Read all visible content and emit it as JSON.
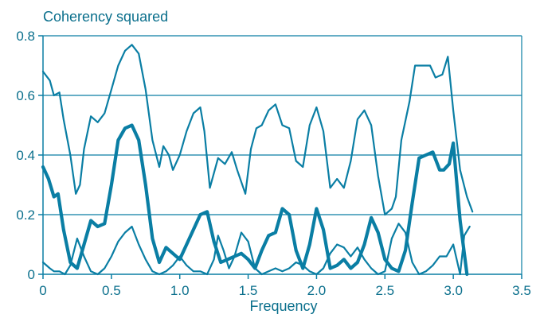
{
  "chart_data": {
    "type": "line",
    "title": "",
    "ylabel": "Coherency squared",
    "xlabel": "Frequency",
    "xlim": [
      0,
      3.5
    ],
    "ylim": [
      0,
      0.8
    ],
    "x_ticks": [
      "0",
      "0.5",
      "1.0",
      "1.5",
      "2.0",
      "2.5",
      "3.0",
      "3.5"
    ],
    "x_tick_values": [
      0,
      0.5,
      1.0,
      1.5,
      2.0,
      2.5,
      3.0,
      3.5
    ],
    "y_ticks": [
      "0",
      "0.2",
      "0.4",
      "0.6",
      "0.8"
    ],
    "y_tick_values": [
      0,
      0.2,
      0.4,
      0.6,
      0.8
    ],
    "grid": "horizontal",
    "legend": "none",
    "colors": {
      "line": "#0a7ea4",
      "grid": "#0a7ea4",
      "text": "#0a6f8c",
      "background": "#ffffff"
    },
    "series": [
      {
        "style": "upper-thin",
        "x": [
          0,
          0.05,
          0.08,
          0.12,
          0.15,
          0.2,
          0.24,
          0.27,
          0.3,
          0.35,
          0.4,
          0.45,
          0.5,
          0.55,
          0.6,
          0.65,
          0.7,
          0.75,
          0.8,
          0.85,
          0.88,
          0.92,
          0.95,
          1.0,
          1.05,
          1.1,
          1.15,
          1.18,
          1.22,
          1.28,
          1.33,
          1.38,
          1.42,
          1.48,
          1.52,
          1.56,
          1.6,
          1.65,
          1.7,
          1.75,
          1.8,
          1.85,
          1.9,
          1.95,
          2.0,
          2.05,
          2.1,
          2.15,
          2.2,
          2.25,
          2.3,
          2.35,
          2.4,
          2.45,
          2.5,
          2.55,
          2.58,
          2.62,
          2.68,
          2.72,
          2.77,
          2.83,
          2.87,
          2.92,
          2.96,
          3.0,
          3.05,
          3.1,
          3.14
        ],
        "y": [
          0.68,
          0.65,
          0.6,
          0.61,
          0.52,
          0.4,
          0.27,
          0.3,
          0.42,
          0.53,
          0.51,
          0.54,
          0.62,
          0.7,
          0.75,
          0.77,
          0.74,
          0.62,
          0.45,
          0.36,
          0.43,
          0.4,
          0.35,
          0.4,
          0.48,
          0.54,
          0.56,
          0.48,
          0.29,
          0.39,
          0.37,
          0.41,
          0.35,
          0.27,
          0.42,
          0.49,
          0.5,
          0.55,
          0.57,
          0.5,
          0.49,
          0.38,
          0.36,
          0.5,
          0.56,
          0.48,
          0.29,
          0.32,
          0.29,
          0.38,
          0.52,
          0.55,
          0.5,
          0.33,
          0.2,
          0.22,
          0.26,
          0.45,
          0.58,
          0.7,
          0.7,
          0.7,
          0.66,
          0.67,
          0.73,
          0.55,
          0.35,
          0.26,
          0.21
        ]
      },
      {
        "style": "middle-thick",
        "x": [
          0,
          0.04,
          0.08,
          0.11,
          0.15,
          0.2,
          0.25,
          0.3,
          0.35,
          0.4,
          0.45,
          0.5,
          0.55,
          0.6,
          0.65,
          0.7,
          0.75,
          0.8,
          0.85,
          0.9,
          0.95,
          1.0,
          1.05,
          1.1,
          1.15,
          1.2,
          1.25,
          1.3,
          1.35,
          1.4,
          1.45,
          1.5,
          1.55,
          1.6,
          1.65,
          1.7,
          1.75,
          1.8,
          1.85,
          1.9,
          1.95,
          2.0,
          2.05,
          2.1,
          2.15,
          2.2,
          2.25,
          2.3,
          2.35,
          2.4,
          2.45,
          2.5,
          2.55,
          2.6,
          2.65,
          2.7,
          2.75,
          2.8,
          2.85,
          2.9,
          2.93,
          2.97,
          3.0,
          3.05,
          3.1
        ],
        "y": [
          0.36,
          0.32,
          0.26,
          0.27,
          0.15,
          0.04,
          0.02,
          0.1,
          0.18,
          0.16,
          0.17,
          0.3,
          0.45,
          0.49,
          0.5,
          0.45,
          0.3,
          0.12,
          0.04,
          0.09,
          0.07,
          0.05,
          0.1,
          0.15,
          0.2,
          0.21,
          0.11,
          0.04,
          0.05,
          0.06,
          0.07,
          0.05,
          0.02,
          0.08,
          0.13,
          0.14,
          0.22,
          0.2,
          0.08,
          0.02,
          0.1,
          0.22,
          0.15,
          0.02,
          0.03,
          0.05,
          0.02,
          0.04,
          0.1,
          0.19,
          0.14,
          0.05,
          0.02,
          0.01,
          0.08,
          0.24,
          0.39,
          0.4,
          0.41,
          0.35,
          0.35,
          0.37,
          0.44,
          0.18,
          0.0
        ]
      },
      {
        "style": "lower-thin",
        "x": [
          0,
          0.05,
          0.08,
          0.12,
          0.16,
          0.2,
          0.25,
          0.3,
          0.35,
          0.4,
          0.45,
          0.5,
          0.55,
          0.6,
          0.65,
          0.7,
          0.75,
          0.8,
          0.85,
          0.9,
          0.95,
          1.0,
          1.05,
          1.1,
          1.15,
          1.2,
          1.25,
          1.28,
          1.32,
          1.36,
          1.4,
          1.45,
          1.5,
          1.55,
          1.6,
          1.65,
          1.7,
          1.75,
          1.8,
          1.85,
          1.9,
          1.95,
          2.0,
          2.05,
          2.1,
          2.15,
          2.2,
          2.25,
          2.3,
          2.35,
          2.4,
          2.45,
          2.5,
          2.55,
          2.6,
          2.65,
          2.7,
          2.75,
          2.8,
          2.85,
          2.9,
          2.95,
          3.0,
          3.05,
          3.08,
          3.12
        ],
        "y": [
          0.04,
          0.02,
          0.01,
          0.01,
          0.0,
          0.03,
          0.12,
          0.06,
          0.01,
          0.0,
          0.02,
          0.06,
          0.11,
          0.14,
          0.16,
          0.1,
          0.05,
          0.01,
          0.0,
          0.01,
          0.03,
          0.06,
          0.03,
          0.01,
          0.01,
          0.0,
          0.05,
          0.13,
          0.08,
          0.02,
          0.06,
          0.14,
          0.11,
          0.02,
          0.0,
          0.01,
          0.02,
          0.01,
          0.02,
          0.04,
          0.03,
          0.01,
          0.0,
          0.02,
          0.07,
          0.1,
          0.09,
          0.06,
          0.09,
          0.05,
          0.02,
          0.0,
          0.01,
          0.12,
          0.17,
          0.14,
          0.04,
          0.0,
          0.01,
          0.03,
          0.06,
          0.06,
          0.1,
          0.0,
          0.13,
          0.16
        ]
      }
    ]
  }
}
